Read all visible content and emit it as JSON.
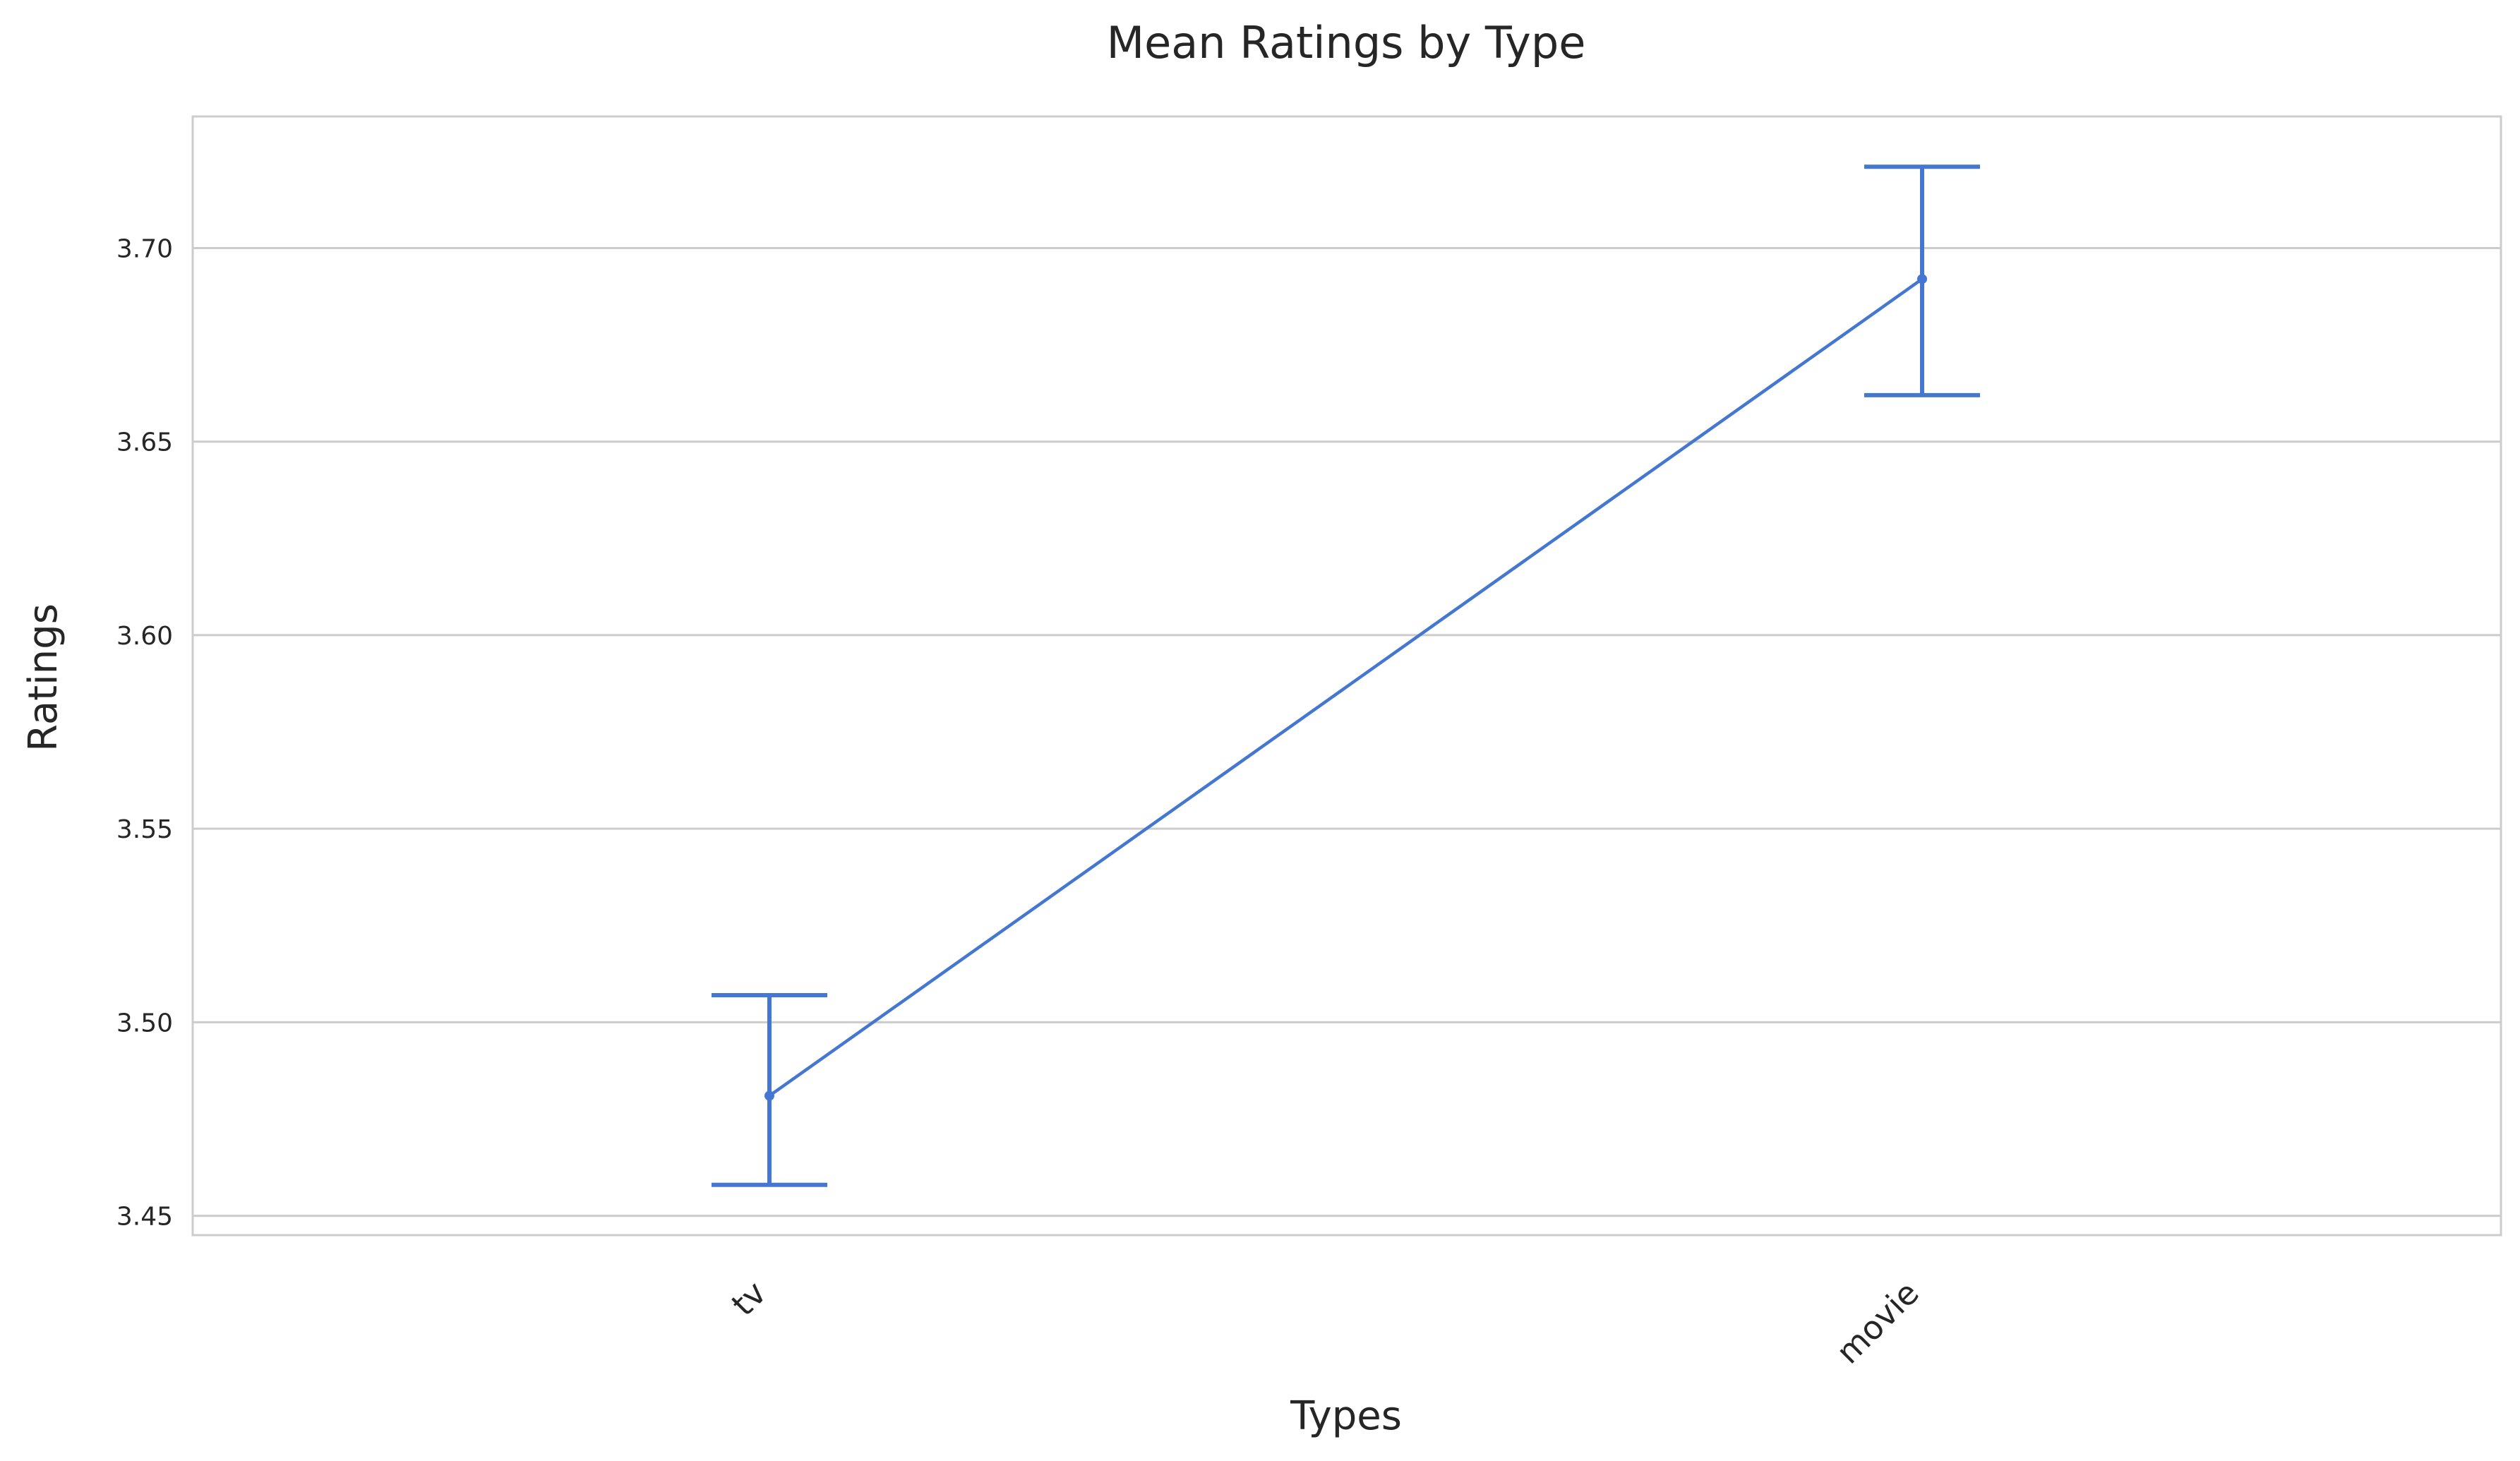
{
  "chart_data": {
    "type": "line",
    "title": "Mean Ratings by Type",
    "xlabel": "Types",
    "ylabel": "Ratings",
    "categories": [
      "tv",
      "movie"
    ],
    "series": [
      {
        "values": [
          3.481,
          3.692
        ],
        "error_low": [
          3.458,
          3.662
        ],
        "error_high": [
          3.507,
          3.721
        ]
      }
    ],
    "ylim": [
      3.445,
      3.734
    ],
    "yticks": [
      "3.45",
      "3.50",
      "3.55",
      "3.60",
      "3.65",
      "3.70"
    ],
    "grid": true,
    "legend": "none",
    "colors": {
      "series": "#4477d1",
      "grid": "#cccccc",
      "frame": "#cccccc",
      "text": "#262626"
    }
  }
}
